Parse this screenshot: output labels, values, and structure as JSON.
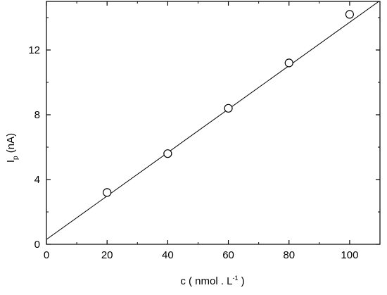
{
  "chart_data": {
    "type": "scatter",
    "xlim": [
      0,
      110
    ],
    "ylim": [
      0,
      15
    ],
    "x_ticks": [
      0,
      20,
      40,
      60,
      80,
      100
    ],
    "y_ticks": [
      0,
      4,
      8,
      12
    ],
    "grid": false,
    "xlabel": {
      "main": "c ( nmol . L",
      "sup": "-1",
      "close": " )"
    },
    "ylabel": {
      "main": "I",
      "sub": "p",
      "rest": " (nA)"
    },
    "series": [
      {
        "marker": "open-circle",
        "x": [
          20,
          40,
          60,
          80,
          100
        ],
        "y": [
          3.2,
          5.6,
          8.4,
          11.2,
          14.2
        ]
      }
    ],
    "fit_line": {
      "x": [
        0,
        110
      ],
      "y": [
        0.3,
        15.05
      ]
    }
  }
}
